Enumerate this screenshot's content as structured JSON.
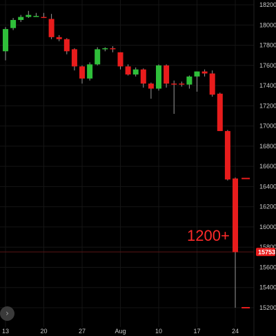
{
  "chart_data": {
    "type": "candlestick",
    "ylim": [
      15100,
      18250
    ],
    "y_ticks": [
      15200,
      15400,
      15600,
      15800,
      16000,
      16200,
      16400,
      16600,
      16800,
      17000,
      17200,
      17400,
      17600,
      17800,
      18000,
      18200
    ],
    "x_tick_labels": [
      {
        "label": "13",
        "index": 0
      },
      {
        "label": "20",
        "index": 5
      },
      {
        "label": "27",
        "index": 10
      },
      {
        "label": "Aug",
        "index": 15
      },
      {
        "label": "10",
        "index": 20
      },
      {
        "label": "17",
        "index": 25
      },
      {
        "label": "24",
        "index": 30
      }
    ],
    "candles": [
      {
        "o": 17740,
        "h": 17980,
        "l": 17650,
        "c": 17960
      },
      {
        "o": 17970,
        "h": 18070,
        "l": 17950,
        "c": 18050
      },
      {
        "o": 18050,
        "h": 18100,
        "l": 18030,
        "c": 18080
      },
      {
        "o": 18080,
        "h": 18140,
        "l": 18070,
        "c": 18100
      },
      {
        "o": 18090,
        "h": 18120,
        "l": 18080,
        "c": 18090
      },
      {
        "o": 18080,
        "h": 18120,
        "l": 18070,
        "c": 18070
      },
      {
        "o": 18060,
        "h": 18110,
        "l": 17860,
        "c": 17880
      },
      {
        "o": 17880,
        "h": 17900,
        "l": 17840,
        "c": 17860
      },
      {
        "o": 17860,
        "h": 17870,
        "l": 17710,
        "c": 17740
      },
      {
        "o": 17760,
        "h": 17770,
        "l": 17550,
        "c": 17590
      },
      {
        "o": 17590,
        "h": 17600,
        "l": 17420,
        "c": 17470
      },
      {
        "o": 17470,
        "h": 17630,
        "l": 17450,
        "c": 17610
      },
      {
        "o": 17610,
        "h": 17780,
        "l": 17600,
        "c": 17760
      },
      {
        "o": 17760,
        "h": 17780,
        "l": 17740,
        "c": 17770
      },
      {
        "o": 17770,
        "h": 17790,
        "l": 17730,
        "c": 17760
      },
      {
        "o": 17730,
        "h": 17730,
        "l": 17560,
        "c": 17590
      },
      {
        "o": 17590,
        "h": 17610,
        "l": 17500,
        "c": 17510
      },
      {
        "o": 17510,
        "h": 17580,
        "l": 17490,
        "c": 17560
      },
      {
        "o": 17560,
        "h": 17570,
        "l": 17380,
        "c": 17420
      },
      {
        "o": 17420,
        "h": 17430,
        "l": 17270,
        "c": 17370
      },
      {
        "o": 17370,
        "h": 17610,
        "l": 17350,
        "c": 17600
      },
      {
        "o": 17600,
        "h": 17610,
        "l": 17380,
        "c": 17420
      },
      {
        "o": 17420,
        "h": 17450,
        "l": 17120,
        "c": 17410
      },
      {
        "o": 17420,
        "h": 17440,
        "l": 17390,
        "c": 17410
      },
      {
        "o": 17410,
        "h": 17500,
        "l": 17370,
        "c": 17490
      },
      {
        "o": 17490,
        "h": 17540,
        "l": 17340,
        "c": 17540
      },
      {
        "o": 17540,
        "h": 17560,
        "l": 17490,
        "c": 17520
      },
      {
        "o": 17520,
        "h": 17550,
        "l": 17290,
        "c": 17310
      },
      {
        "o": 17320,
        "h": 17330,
        "l": 16950,
        "c": 16950
      },
      {
        "o": 16950,
        "h": 16960,
        "l": 16460,
        "c": 16470
      },
      {
        "o": 16480,
        "h": 16490,
        "l": 15200,
        "c": 15750
      }
    ],
    "ghost_ticks": [
      16480,
      15200
    ],
    "last_price": {
      "value": 15753,
      "label": "15753"
    },
    "annotation": "1200+"
  },
  "colors": {
    "background": "#000000",
    "up": "#2fbf3a",
    "down": "#e81c1c",
    "wick": "#9a9a9a",
    "axis_text": "#c8c8c8",
    "grid": "#151515",
    "price_line": "#5a1515",
    "price_badge": "#e81c1c"
  },
  "nav": {
    "prev_icon": "›"
  }
}
